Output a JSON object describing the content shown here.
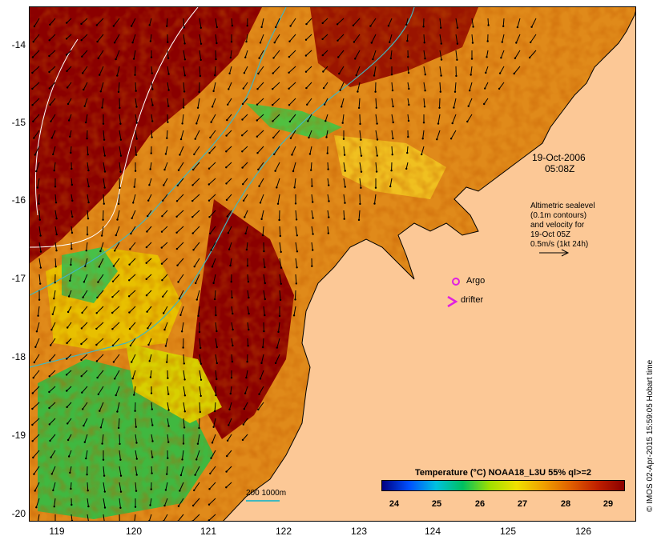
{
  "map": {
    "date_label": "19-Oct-2006",
    "time_label": "05:08Z",
    "altimetry_note": [
      "Altimetric sealevel",
      "(0.1m contours)",
      "and velocity for",
      "19-Oct 05Z",
      "0.5m/s (1kt 24h)"
    ],
    "argo_label": "Argo",
    "drifter_label": "drifter",
    "scale_label": "200  1000m",
    "credit": "© IMOS 02-Apr-2015 15:59:05 Hobart time",
    "land_color": "#fcc896",
    "argo_color": "#e020e0",
    "contour_color": "#40b8c0",
    "y_axis_labels": [
      "-14",
      "-15",
      "-16",
      "-17",
      "-18",
      "-19",
      "-20"
    ],
    "x_axis_labels": [
      "119",
      "120",
      "121",
      "122",
      "123",
      "124",
      "125",
      "126"
    ]
  },
  "legend": {
    "title": "Temperature (°C) NOAA18_L3U 55% ql>=2",
    "ticks": [
      "24",
      "25",
      "26",
      "27",
      "28",
      "29"
    ],
    "color_stops": [
      "#000080",
      "#0050ff",
      "#00c0e0",
      "#00c060",
      "#a0e000",
      "#f0e000",
      "#f0a000",
      "#e06000",
      "#c02000",
      "#8b0000"
    ]
  }
}
